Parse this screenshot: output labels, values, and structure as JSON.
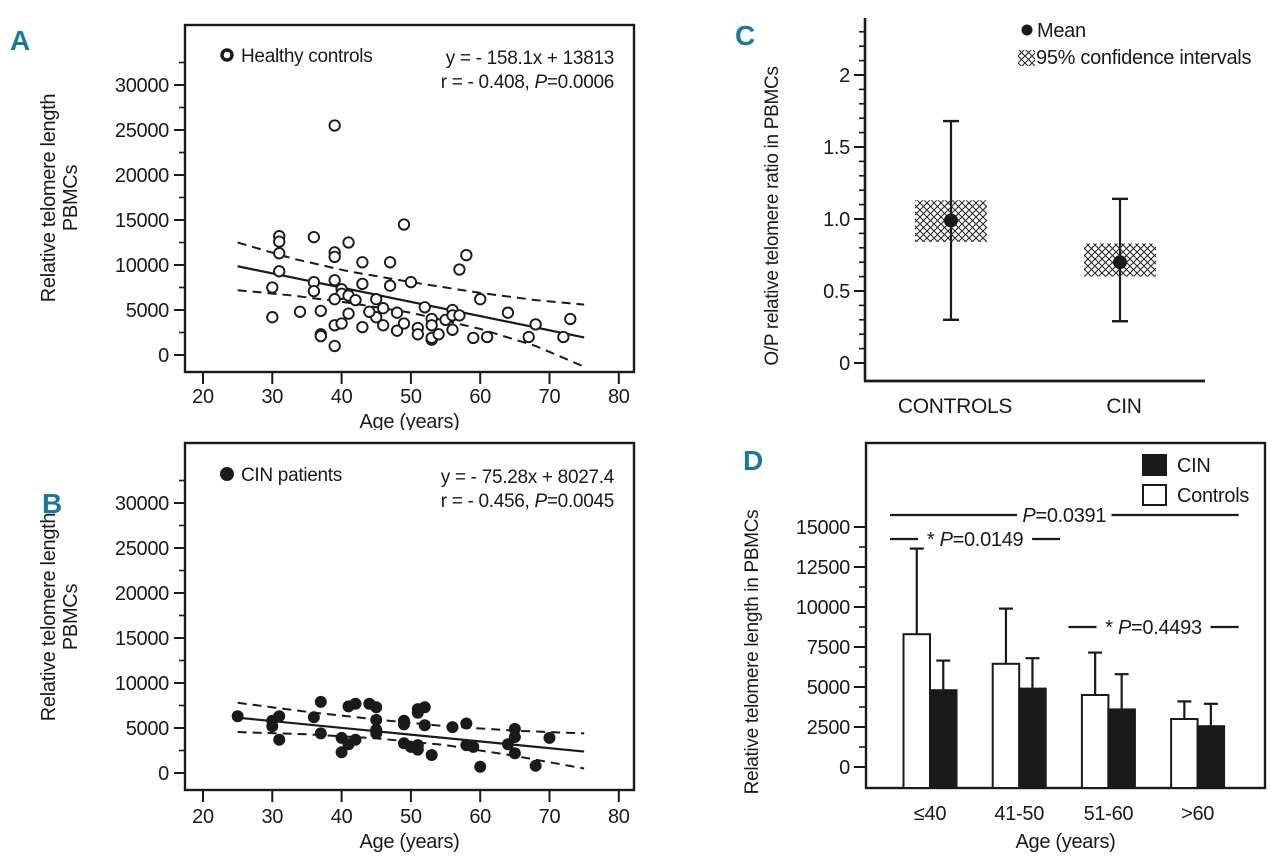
{
  "figure": {
    "background": "#ffffff",
    "ink_color": "#1a1a1a",
    "panel_letter_color": "#1878a2"
  },
  "chart_data": [
    {
      "panel": "A",
      "type": "scatter",
      "legend_label": "Healthy controls",
      "marker": "open",
      "equation": "y = - 158.1x + 13813",
      "r_prefix": "r = - 0.408, ",
      "p_symbol": "P",
      "p_rest": "=0.0006",
      "xlabel": "Age (years)",
      "ylabel_lines": [
        "Relative telomere length",
        "PBMCs"
      ],
      "xticks": [
        20,
        30,
        40,
        50,
        60,
        70,
        80
      ],
      "yticks": [
        0,
        5000,
        10000,
        15000,
        20000,
        25000,
        30000
      ],
      "xlim": [
        20,
        80
      ],
      "ylim": [
        0,
        30000
      ],
      "regression": {
        "x": [
          25,
          75
        ],
        "y": [
          9860,
          1956
        ]
      },
      "ci_upper": [
        [
          25,
          12500
        ],
        [
          33,
          10700
        ],
        [
          41,
          9300
        ],
        [
          50,
          8100
        ],
        [
          60,
          6900
        ],
        [
          68,
          6100
        ],
        [
          75,
          5600
        ]
      ],
      "ci_lower": [
        [
          25,
          7200
        ],
        [
          33,
          6600
        ],
        [
          41,
          5800
        ],
        [
          50,
          4700
        ],
        [
          60,
          2900
        ],
        [
          68,
          1000
        ],
        [
          75,
          -1300
        ]
      ],
      "points": [
        [
          39,
          25500
        ],
        [
          31,
          13200
        ],
        [
          31,
          12600
        ],
        [
          31,
          11300
        ],
        [
          36,
          13100
        ],
        [
          41,
          12500
        ],
        [
          39,
          11400
        ],
        [
          39,
          10900
        ],
        [
          31,
          9300
        ],
        [
          30,
          7500
        ],
        [
          36,
          8100
        ],
        [
          36,
          7100
        ],
        [
          39,
          8300
        ],
        [
          40,
          7300
        ],
        [
          40,
          6800
        ],
        [
          41,
          6600
        ],
        [
          42,
          6100
        ],
        [
          43,
          7900
        ],
        [
          43,
          10300
        ],
        [
          45,
          6200
        ],
        [
          47,
          7700
        ],
        [
          47,
          10300
        ],
        [
          49,
          14500
        ],
        [
          50,
          8100
        ],
        [
          30,
          4200
        ],
        [
          34,
          4800
        ],
        [
          37,
          4900
        ],
        [
          39,
          6200
        ],
        [
          41,
          4600
        ],
        [
          37,
          2300
        ],
        [
          37,
          2100
        ],
        [
          39,
          3300
        ],
        [
          40,
          3500
        ],
        [
          39,
          1000
        ],
        [
          43,
          3100
        ],
        [
          46,
          3300
        ],
        [
          45,
          4200
        ],
        [
          44,
          4800
        ],
        [
          46,
          5200
        ],
        [
          48,
          4700
        ],
        [
          48,
          2700
        ],
        [
          49,
          3500
        ],
        [
          52,
          5300
        ],
        [
          53,
          4000
        ],
        [
          55,
          3900
        ],
        [
          56,
          5000
        ],
        [
          56,
          4400
        ],
        [
          57,
          4400
        ],
        [
          56,
          2800
        ],
        [
          53,
          3300
        ],
        [
          51,
          3000
        ],
        [
          51,
          2300
        ],
        [
          53,
          1700
        ],
        [
          53,
          1900
        ],
        [
          54,
          2300
        ],
        [
          59,
          1900
        ],
        [
          61,
          2000
        ],
        [
          57,
          9500
        ],
        [
          58,
          11100
        ],
        [
          60,
          6200
        ],
        [
          64,
          4700
        ],
        [
          67,
          2000
        ],
        [
          68,
          3400
        ],
        [
          72,
          2000
        ],
        [
          73,
          4000
        ]
      ]
    },
    {
      "panel": "B",
      "type": "scatter",
      "legend_label": "CIN patients",
      "marker": "filled",
      "equation": "y = - 75.28x + 8027.4",
      "r_prefix": "r = - 0.456, ",
      "p_symbol": "P",
      "p_rest": "=0.0045",
      "xlabel": "Age (years)",
      "ylabel_lines": [
        "Relative telomere length",
        "PBMCs"
      ],
      "xticks": [
        20,
        30,
        40,
        50,
        60,
        70,
        80
      ],
      "yticks": [
        0,
        5000,
        10000,
        15000,
        20000,
        25000,
        30000
      ],
      "xlim": [
        20,
        80
      ],
      "ylim": [
        0,
        30000
      ],
      "regression": {
        "x": [
          25,
          75
        ],
        "y": [
          6145,
          2381
        ]
      },
      "ci_upper": [
        [
          25,
          7800
        ],
        [
          35,
          6800
        ],
        [
          45,
          5950
        ],
        [
          55,
          5200
        ],
        [
          65,
          4700
        ],
        [
          75,
          4400
        ]
      ],
      "ci_lower": [
        [
          25,
          4550
        ],
        [
          35,
          4300
        ],
        [
          45,
          3850
        ],
        [
          55,
          3100
        ],
        [
          65,
          1900
        ],
        [
          75,
          500
        ]
      ],
      "points": [
        [
          25,
          6300
        ],
        [
          30,
          5800
        ],
        [
          31,
          6300
        ],
        [
          30,
          5200
        ],
        [
          31,
          3700
        ],
        [
          36,
          6200
        ],
        [
          37,
          7900
        ],
        [
          37,
          4400
        ],
        [
          41,
          7400
        ],
        [
          42,
          7700
        ],
        [
          40,
          3900
        ],
        [
          41,
          3200
        ],
        [
          42,
          3700
        ],
        [
          40,
          2300
        ],
        [
          44,
          7700
        ],
        [
          45,
          7300
        ],
        [
          45,
          5900
        ],
        [
          45,
          4800
        ],
        [
          45,
          4400
        ],
        [
          49,
          5800
        ],
        [
          49,
          5400
        ],
        [
          49,
          3300
        ],
        [
          50,
          2900
        ],
        [
          51,
          2600
        ],
        [
          51,
          3100
        ],
        [
          51,
          7100
        ],
        [
          51,
          6700
        ],
        [
          52,
          7300
        ],
        [
          52,
          5300
        ],
        [
          53,
          2000
        ],
        [
          56,
          5100
        ],
        [
          58,
          5500
        ],
        [
          58,
          3100
        ],
        [
          59,
          2900
        ],
        [
          60,
          700
        ],
        [
          64,
          3200
        ],
        [
          65,
          4900
        ],
        [
          65,
          4000
        ],
        [
          65,
          2200
        ],
        [
          68,
          800
        ],
        [
          70,
          3900
        ]
      ]
    },
    {
      "panel": "C",
      "type": "mean-ci",
      "ylabel": "O/P relative telomere ratio in PBMCs",
      "legend": [
        {
          "marker": "dot",
          "label": "Mean"
        },
        {
          "marker": "crosshatch",
          "label": "95% confidence intervals"
        }
      ],
      "yticks": [
        0,
        0.5,
        1,
        1.5,
        2
      ],
      "ytick_labels": [
        "0",
        "0.5",
        "1.0",
        "1.5",
        "2"
      ],
      "ylim": [
        0,
        2.3
      ],
      "groups": [
        {
          "label": "CONTROLS",
          "mean": 0.99,
          "ci": [
            0.84,
            1.13
          ],
          "whiskers": [
            0.3,
            1.68
          ]
        },
        {
          "label": "CIN",
          "mean": 0.7,
          "ci": [
            0.6,
            0.83
          ],
          "whiskers": [
            0.29,
            1.14
          ]
        }
      ]
    },
    {
      "panel": "D",
      "type": "bar",
      "ylabel": "Relative telomere length in PBMCs",
      "xlabel": "Age (years)",
      "categories": [
        "≤40",
        "41-50",
        "51-60",
        ">60"
      ],
      "series": [
        {
          "name": "CIN",
          "fill": "black",
          "values": [
            4800,
            4900,
            3600,
            2550
          ],
          "error_top": [
            6650,
            6800,
            5800,
            3950
          ]
        },
        {
          "name": "Controls",
          "fill": "white",
          "values": [
            8300,
            6450,
            4500,
            3000
          ],
          "error_top": [
            13650,
            9900,
            7150,
            4100
          ]
        }
      ],
      "yticks": [
        0,
        2500,
        5000,
        7500,
        10000,
        12500,
        15000
      ],
      "ylim": [
        0,
        15000
      ],
      "significance": [
        {
          "star": false,
          "p_symbol": "P",
          "p_rest": "=0.0391",
          "level": 15750,
          "from": 0,
          "to": 3
        },
        {
          "star": true,
          "p_symbol": "P",
          "p_rest": "=0.0149",
          "level": 14250,
          "from": 0,
          "to": 1
        },
        {
          "star": true,
          "p_symbol": "P",
          "p_rest": "=0.4493",
          "level": 8750,
          "from": 2,
          "to": 3
        }
      ]
    }
  ]
}
